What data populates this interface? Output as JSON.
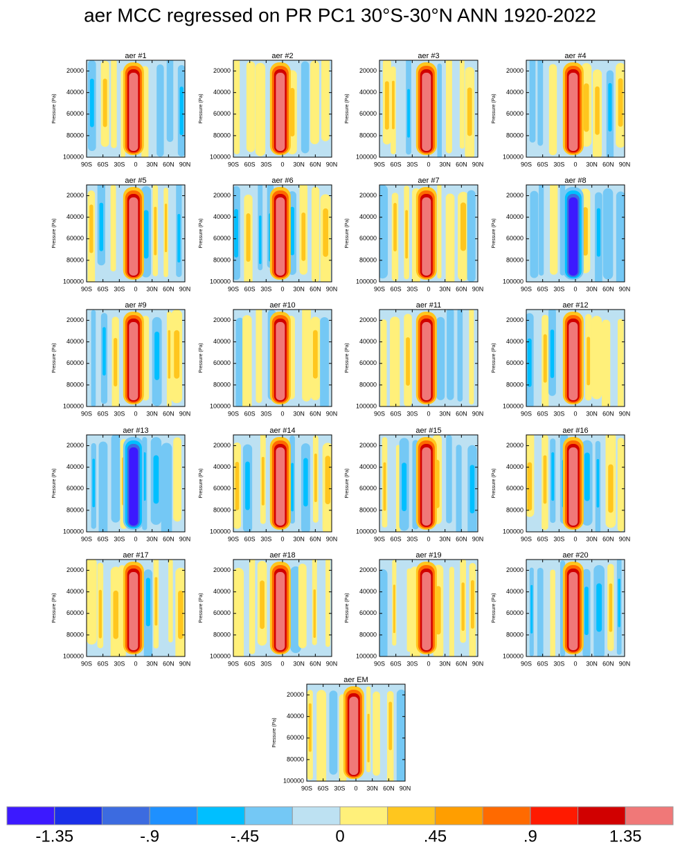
{
  "chart_data": {
    "type": "contour",
    "title": "aer MCC regressed on PR PC1 30°S-30°N ANN 1920-2022",
    "panels": [
      "aer #1",
      "aer #2",
      "aer #3",
      "aer #4",
      "aer #5",
      "aer #6",
      "aer #7",
      "aer #8",
      "aer #9",
      "aer #10",
      "aer #11",
      "aer #12",
      "aer #13",
      "aer #14",
      "aer #15",
      "aer #16",
      "aer #17",
      "aer #18",
      "aer #19",
      "aer #20",
      "aer EM"
    ],
    "ylabel": "Pressure (Pa)",
    "xlim": [
      -90,
      90
    ],
    "xticks": [
      {
        "value": -90,
        "label": "90S"
      },
      {
        "value": -60,
        "label": "60S"
      },
      {
        "value": -30,
        "label": "30S"
      },
      0,
      {
        "value": 30,
        "label": "30N"
      },
      {
        "value": 60,
        "label": "60N"
      },
      {
        "value": 90,
        "label": "90N"
      }
    ],
    "ylim": [
      10000,
      100000
    ],
    "yticks": [
      20000,
      40000,
      60000,
      80000,
      100000
    ],
    "colorbar": {
      "lim": [
        -1.575,
        1.575
      ],
      "ticks": [
        {
          "value": -1.35,
          "label": "-1.35"
        },
        {
          "value": -0.9,
          "label": "-.9"
        },
        {
          "value": -0.45,
          "label": "-.45"
        },
        0,
        {
          "value": 0.45,
          "label": ".45"
        },
        {
          "value": 0.9,
          "label": ".9"
        },
        {
          "value": 1.35,
          "label": "1.35"
        }
      ],
      "colors": [
        "#3c19ff",
        "#1a2fe8",
        "#3c6be0",
        "#1e90ff",
        "#00bfff",
        "#74c8f5",
        "#bde1f2",
        "#fff07a",
        "#ffc61e",
        "#ff9e00",
        "#ff6a00",
        "#ff1a00",
        "#d10000",
        "#f07878"
      ]
    }
  }
}
